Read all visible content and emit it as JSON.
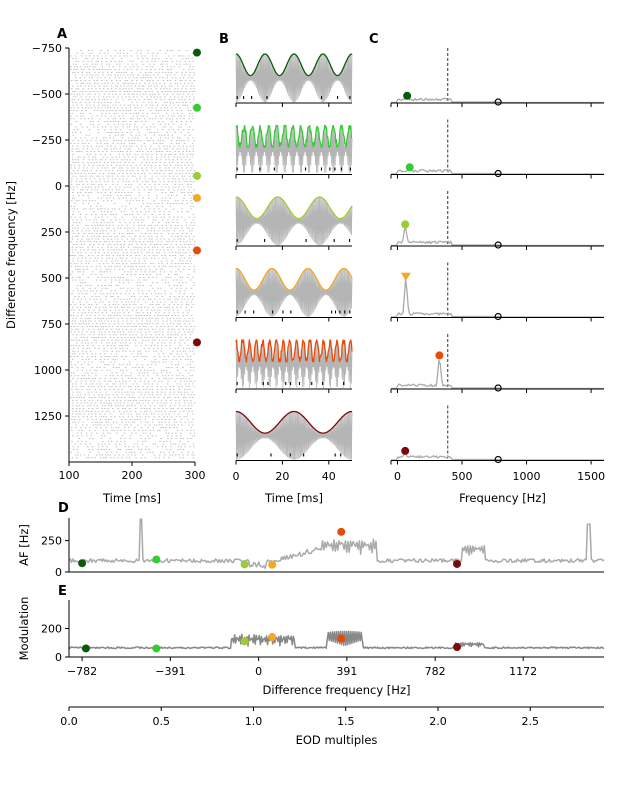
{
  "chart_data": [
    {
      "panel": "A",
      "type": "scatter",
      "subtype": "raster",
      "xlabel": "Time [ms]",
      "ylabel": "Difference frequency [Hz]",
      "xlim": [
        100,
        300
      ],
      "ylim": [
        -750,
        1500
      ],
      "y_inverted": true,
      "xticks": [
        100,
        200,
        300
      ],
      "yticks": [
        -750,
        -500,
        -250,
        0,
        250,
        500,
        750,
        1000,
        1250
      ],
      "spike_color": "#b5b5b5",
      "markers": [
        {
          "df": -725,
          "color": "#0b5a0b"
        },
        {
          "df": -425,
          "color": "#33cc33"
        },
        {
          "df": -55,
          "color": "#9acd32"
        },
        {
          "df": 65,
          "color": "#f5a623"
        },
        {
          "df": 350,
          "color": "#e84a0c"
        },
        {
          "df": 850,
          "color": "#7a0a0a"
        }
      ]
    },
    {
      "panel": "B",
      "type": "line",
      "xlabel": "Time [ms]",
      "xlim": [
        0,
        50
      ],
      "xticks": [
        0,
        20,
        40
      ],
      "carrier_color": "#b5b5b5",
      "series": [
        {
          "df": -725,
          "color": "#0b5a0b",
          "envelope": "smooth",
          "period_ms": 12.5
        },
        {
          "df": -425,
          "color": "#33cc33",
          "envelope": "jagged",
          "period_ms": 3.5
        },
        {
          "df": -55,
          "color": "#9acd32",
          "envelope": "smooth",
          "period_ms": 18
        },
        {
          "df": 65,
          "color": "#f5a623",
          "envelope": "smooth",
          "period_ms": 15.5
        },
        {
          "df": 350,
          "color": "#e84a0c",
          "envelope": "jagged",
          "period_ms": 2.9
        },
        {
          "df": 850,
          "color": "#7a0a0a",
          "envelope": "smooth",
          "period_ms": 25
        }
      ]
    },
    {
      "panel": "C",
      "type": "line",
      "xlabel": "Frequency [Hz]",
      "xlim": [
        -50,
        1600
      ],
      "xticks": [
        0,
        500,
        1000,
        1500
      ],
      "eod_line": 390,
      "eod_peak": 780,
      "series": [
        {
          "color": "#0b5a0b",
          "peak_freq": 75,
          "peak_height": 0.15,
          "marker": "circle"
        },
        {
          "color": "#33cc33",
          "peak_freq": 95,
          "peak_height": 0.15,
          "marker": "circle"
        },
        {
          "color": "#9acd32",
          "peak_freq": 60,
          "peak_height": 0.45,
          "marker": "circle"
        },
        {
          "color": "#f5a623",
          "peak_freq": 65,
          "peak_height": 0.85,
          "marker": "triangle"
        },
        {
          "color": "#e84a0c",
          "peak_freq": 325,
          "peak_height": 0.7,
          "marker": "circle"
        },
        {
          "color": "#7a0a0a",
          "peak_freq": 60,
          "peak_height": 0.2,
          "marker": "circle"
        }
      ]
    },
    {
      "panel": "D",
      "type": "line",
      "ylabel": "AF [Hz]",
      "ylim": [
        0,
        430
      ],
      "yticks": [
        0,
        250
      ],
      "xlim": [
        -840,
        1530
      ],
      "line_color": "#aaaaaa",
      "points": [
        {
          "df": -782,
          "value": 70,
          "color": "#0b5a0b"
        },
        {
          "df": -453,
          "value": 100,
          "color": "#33cc33"
        },
        {
          "df": -62,
          "value": 60,
          "color": "#9acd32"
        },
        {
          "df": 60,
          "value": 58,
          "color": "#f5a623"
        },
        {
          "df": 366,
          "value": 320,
          "color": "#e84a0c"
        },
        {
          "df": 879,
          "value": 64,
          "color": "#7a0a0a"
        }
      ]
    },
    {
      "panel": "E",
      "type": "line",
      "ylabel": "Modulation",
      "xlabel": "Difference frequency [Hz]",
      "ylim": [
        0,
        400
      ],
      "yticks": [
        0,
        200
      ],
      "xlim": [
        -840,
        1530
      ],
      "xticks": [
        -782,
        -391,
        0,
        391,
        782,
        1172
      ],
      "line_color": "#888888",
      "points": [
        {
          "df": -765,
          "value": 60,
          "color": "#0b5a0b"
        },
        {
          "df": -453,
          "value": 60,
          "color": "#33cc33"
        },
        {
          "df": -62,
          "value": 110,
          "color": "#9acd32"
        },
        {
          "df": 60,
          "value": 140,
          "color": "#f5a623"
        },
        {
          "df": 366,
          "value": 130,
          "color": "#e84a0c"
        },
        {
          "df": 879,
          "value": 70,
          "color": "#7a0a0a"
        }
      ]
    },
    {
      "panel": "EOD",
      "type": "axis",
      "xlabel": "EOD multiples",
      "xlim": [
        0.0,
        2.9
      ],
      "xticks": [
        0.0,
        0.5,
        1.0,
        1.5,
        2.0,
        2.5
      ],
      "xtick_labels": [
        "0.0",
        "0.5",
        "1.0",
        "1.5",
        "2.0",
        "2.5"
      ]
    }
  ],
  "panels": {
    "a": {
      "letter": "A"
    },
    "b": {
      "letter": "B"
    },
    "c": {
      "letter": "C"
    },
    "d": {
      "letter": "D"
    },
    "e": {
      "letter": "E"
    }
  }
}
